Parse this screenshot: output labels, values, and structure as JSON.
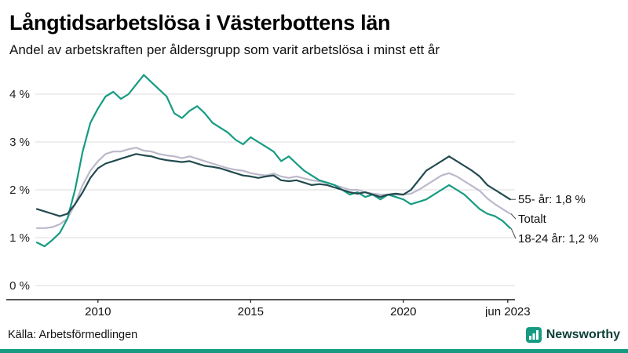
{
  "header": {
    "title": "Långtidsarbetslösa i Västerbottens län",
    "subtitle": "Andel av arbetskraften per åldersgrupp som varit arbetslösa i minst ett år"
  },
  "footer": {
    "source": "Källa: Arbetsförmedlingen",
    "brand": "Newsworthy"
  },
  "colors": {
    "teal": "#169b82",
    "dark": "#234a4f",
    "gray": "#bcb8cb",
    "grid": "#dcdcdc",
    "axis": "#1a1a1a",
    "accent_bar": "#169b82",
    "logo": "#169b82",
    "logo_text": "#0c3f38"
  },
  "chart_data": {
    "type": "line",
    "title": "Långtidsarbetslösa i Västerbottens län",
    "subtitle": "Andel av arbetskraften per åldersgrupp som varit arbetslösa i minst ett år",
    "xlabel": "",
    "ylabel": "",
    "xlim": [
      2008,
      2023.5
    ],
    "ylim": [
      -0.3,
      4.6
    ],
    "grid": "horizontal",
    "legend_position": "right-end-labels",
    "x_ticks": [
      2010,
      2015,
      2020,
      2023.42
    ],
    "x_tick_labels": [
      "2010",
      "2015",
      "2020",
      "jun 2023"
    ],
    "y_ticks": [
      0,
      1,
      2,
      3,
      4
    ],
    "y_tick_labels": [
      "0 %",
      "1 %",
      "2 %",
      "3 %",
      "4 %"
    ],
    "x": [
      2008,
      2008.25,
      2008.5,
      2008.75,
      2009,
      2009.25,
      2009.5,
      2009.75,
      2010,
      2010.25,
      2010.5,
      2010.75,
      2011,
      2011.25,
      2011.5,
      2011.75,
      2012,
      2012.25,
      2012.5,
      2012.75,
      2013,
      2013.25,
      2013.5,
      2013.75,
      2014,
      2014.25,
      2014.5,
      2014.75,
      2015,
      2015.25,
      2015.5,
      2015.75,
      2016,
      2016.25,
      2016.5,
      2016.75,
      2017,
      2017.25,
      2017.5,
      2017.75,
      2018,
      2018.25,
      2018.5,
      2018.75,
      2019,
      2019.25,
      2019.5,
      2019.75,
      2020,
      2020.25,
      2020.5,
      2020.75,
      2021,
      2021.25,
      2021.5,
      2021.75,
      2022,
      2022.25,
      2022.5,
      2022.75,
      2023,
      2023.25,
      2023.5
    ],
    "series": [
      {
        "name": "Totalt",
        "key": "total",
        "color_key": "gray",
        "values": [
          1.2,
          1.2,
          1.22,
          1.28,
          1.4,
          1.7,
          2.1,
          2.4,
          2.6,
          2.75,
          2.8,
          2.8,
          2.85,
          2.88,
          2.82,
          2.8,
          2.75,
          2.72,
          2.7,
          2.66,
          2.7,
          2.65,
          2.6,
          2.55,
          2.5,
          2.45,
          2.42,
          2.4,
          2.35,
          2.32,
          2.3,
          2.34,
          2.28,
          2.25,
          2.28,
          2.24,
          2.2,
          2.18,
          2.15,
          2.1,
          2.05,
          2.0,
          2.0,
          1.95,
          1.92,
          1.9,
          1.9,
          1.9,
          1.9,
          1.92,
          2.0,
          2.1,
          2.2,
          2.3,
          2.35,
          2.28,
          2.18,
          2.08,
          1.98,
          1.82,
          1.7,
          1.6,
          1.5
        ]
      },
      {
        "name": "18-24 år",
        "key": "youth",
        "color_key": "teal",
        "values": [
          0.9,
          0.82,
          0.95,
          1.1,
          1.4,
          2.0,
          2.8,
          3.4,
          3.7,
          3.95,
          4.05,
          3.9,
          4.0,
          4.2,
          4.4,
          4.25,
          4.1,
          3.95,
          3.6,
          3.5,
          3.65,
          3.75,
          3.6,
          3.4,
          3.3,
          3.2,
          3.05,
          2.95,
          3.1,
          3.0,
          2.9,
          2.8,
          2.6,
          2.7,
          2.55,
          2.4,
          2.3,
          2.2,
          2.15,
          2.1,
          2.0,
          1.9,
          1.95,
          1.85,
          1.9,
          1.8,
          1.9,
          1.85,
          1.8,
          1.7,
          1.75,
          1.8,
          1.9,
          2.0,
          2.1,
          2.0,
          1.9,
          1.75,
          1.6,
          1.5,
          1.45,
          1.35,
          1.2
        ]
      },
      {
        "name": "55- år",
        "key": "senior",
        "color_key": "dark",
        "values": [
          1.6,
          1.55,
          1.5,
          1.45,
          1.5,
          1.7,
          1.95,
          2.25,
          2.45,
          2.55,
          2.6,
          2.65,
          2.7,
          2.75,
          2.72,
          2.7,
          2.65,
          2.62,
          2.6,
          2.58,
          2.6,
          2.55,
          2.5,
          2.48,
          2.45,
          2.4,
          2.35,
          2.3,
          2.28,
          2.25,
          2.28,
          2.3,
          2.2,
          2.18,
          2.2,
          2.15,
          2.1,
          2.12,
          2.1,
          2.05,
          2.0,
          1.95,
          1.92,
          1.95,
          1.9,
          1.85,
          1.9,
          1.92,
          1.9,
          2.0,
          2.2,
          2.4,
          2.5,
          2.6,
          2.7,
          2.6,
          2.5,
          2.4,
          2.28,
          2.1,
          2.0,
          1.9,
          1.8
        ]
      }
    ],
    "end_labels": [
      {
        "text": "55- år: 1,8 %",
        "series": "55- år",
        "value": 1.8
      },
      {
        "text": "Totalt",
        "series": "Totalt",
        "value": 1.5
      },
      {
        "text": "18-24 år: 1,2 %",
        "series": "18-24 år",
        "value": 1.2
      }
    ]
  }
}
